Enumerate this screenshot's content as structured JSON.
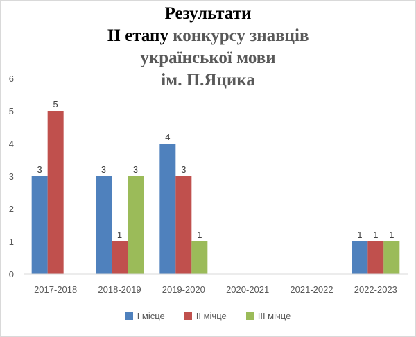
{
  "chart_data": {
    "type": "bar",
    "title_lines": [
      "Результати",
      "ІІ  етапу",
      " конкурсу знавців",
      "української мови",
      "ім. П.Яцика"
    ],
    "categories": [
      "2017-2018",
      "2018-2019",
      "2019-2020",
      "2020-2021",
      "2021-2022",
      "2022-2023"
    ],
    "series": [
      {
        "name": "I місце",
        "color": "#4f81bd",
        "values": [
          3,
          3,
          4,
          null,
          null,
          1
        ]
      },
      {
        "name": "II мічце",
        "color": "#c0504d",
        "values": [
          5,
          1,
          3,
          null,
          null,
          1
        ]
      },
      {
        "name": "III мічце",
        "color": "#9bbb59",
        "values": [
          null,
          3,
          1,
          null,
          null,
          1
        ]
      }
    ],
    "ylim": [
      0,
      6
    ],
    "yticks": [
      "0",
      "1",
      "2",
      "3",
      "4",
      "5",
      "6"
    ],
    "grid": false,
    "legend_position": "bottom",
    "data_labels": true
  }
}
